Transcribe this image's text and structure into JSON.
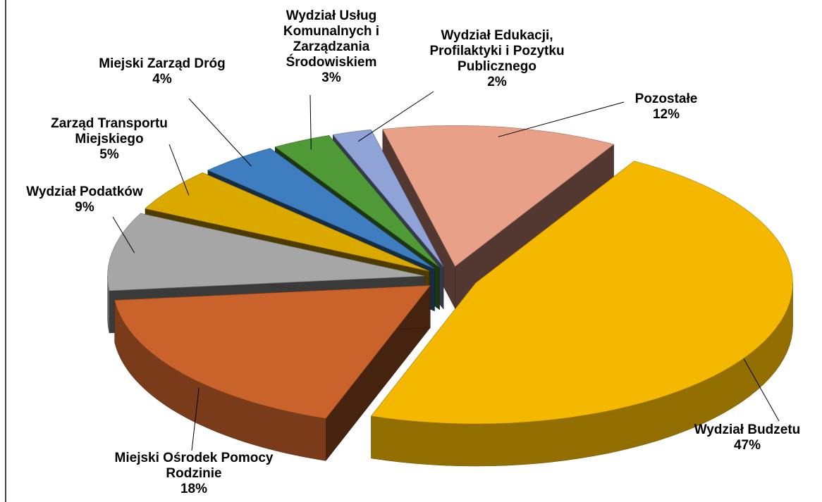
{
  "chart_data": {
    "type": "pie",
    "categories": [
      "Wydział Budzetu",
      "Miejski Ośrodek Pomocy Rodzinie",
      "Wydział Podatków",
      "Zarząd Transportu Miejskiego",
      "Miejski Zarząd Dróg",
      "Wydział Usług Komunalnych i Zarządzania Środowiskiem",
      "Wydział Edukacji, Profilaktyki i Pozytku Publicznego",
      "Pozostałe"
    ],
    "values": [
      47,
      18,
      9,
      5,
      4,
      3,
      2,
      12
    ],
    "value_labels": [
      "47%",
      "18%",
      "9%",
      "5%",
      "4%",
      "3%",
      "2%",
      "12%"
    ],
    "colors": [
      "#f5b800",
      "#c9632b",
      "#a6a6a6",
      "#dba800",
      "#3d7dc0",
      "#4f9a37",
      "#8fa3d6",
      "#e9a089"
    ]
  }
}
